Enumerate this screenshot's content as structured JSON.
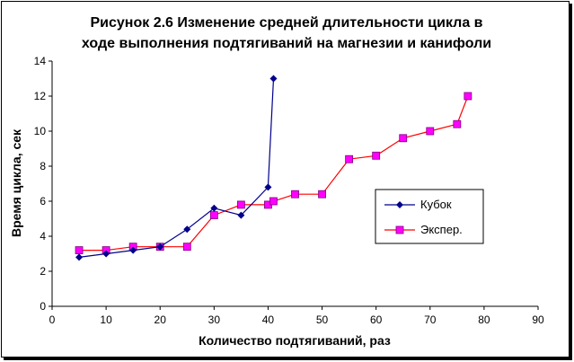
{
  "chart_data": {
    "type": "line",
    "title_lines": [
      "Рисунок 2.6  Изменение средней длительности цикла в",
      "ходе выполнения подтягиваний на магнезии и канифоли"
    ],
    "xlabel": "Количество подтягиваний, раз",
    "ylabel": "Время цикла, сек",
    "xlim": [
      0,
      90
    ],
    "ylim": [
      0,
      14
    ],
    "x_ticks": [
      "0",
      "10",
      "20",
      "30",
      "40",
      "50",
      "60",
      "70",
      "80",
      "90"
    ],
    "y_ticks": [
      "0",
      "2",
      "4",
      "6",
      "8",
      "10",
      "12",
      "14"
    ],
    "grid": false,
    "legend_position": "right",
    "series": [
      {
        "name": "Кубок",
        "color": "#00008B",
        "marker": "diamond",
        "marker_color": "#00008B",
        "x": [
          5,
          10,
          15,
          20,
          25,
          30,
          35,
          40,
          41
        ],
        "y": [
          2.8,
          3.0,
          3.2,
          3.4,
          4.4,
          5.6,
          5.2,
          6.8,
          13.0
        ]
      },
      {
        "name": "Экспер.",
        "color": "#FF0000",
        "marker": "square",
        "marker_color": "#FF00FF",
        "x": [
          5,
          10,
          15,
          20,
          25,
          30,
          35,
          40,
          41,
          45,
          50,
          55,
          60,
          65,
          70,
          75,
          77
        ],
        "y": [
          3.2,
          3.2,
          3.4,
          3.4,
          3.4,
          5.2,
          5.8,
          5.8,
          6.0,
          6.4,
          6.4,
          8.4,
          8.6,
          9.6,
          10.0,
          10.4,
          12.0
        ]
      }
    ]
  }
}
